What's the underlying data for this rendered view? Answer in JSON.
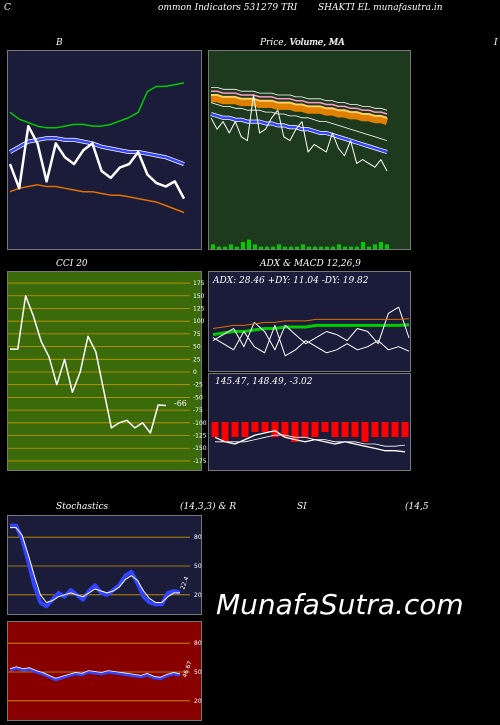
{
  "header": {
    "left_letter": "C",
    "left_title": "ommon  Indicators 531279 TRI",
    "right_title": "SHAKTI EL  munafasutra.in"
  },
  "labels": {
    "b_title": "B",
    "price_title": "Price,  Volume,  MA",
    "price_overlap": "Volume, MA",
    "edge_letter": "I",
    "cci_title": "CCI 20",
    "adx_title": "ADX  & MACD 12,26,9",
    "adx_values": "ADX: 28.46  +DY: 11.04  -DY: 19.82",
    "macd_values": "145.47,  148.49,  -3.02",
    "cci_value": "-66",
    "stoch_title": "Stochastics",
    "stoch_params": "(14,3,3) & R",
    "rsi_title": "SI",
    "rsi_params": "(14,5",
    "stoch_value": "22.4",
    "rsi_value": "46.67",
    "watermark": "MunafaSutra.com"
  },
  "colors": {
    "navy_panel": "#1b1b3a",
    "green_panel": "#1e3a1e",
    "olive_panel": "#3a6a0a",
    "red_panel": "#880000",
    "green_line": "#00cc00",
    "blue_line": "#3344ff",
    "orange_line": "#e07000",
    "gold_grid": "#cc9900",
    "macd_red": "#ff0000"
  },
  "chart_data": [
    {
      "type": "line",
      "panel": "B",
      "series": [
        {
          "role": "upper band",
          "values": [
            78,
            74,
            72,
            70,
            69,
            69,
            70,
            71,
            71,
            70,
            70,
            71,
            73,
            75,
            78,
            90,
            93,
            93,
            94,
            95
          ]
        },
        {
          "role": "middle band",
          "values": [
            55,
            58,
            61,
            62,
            63,
            63,
            62,
            62,
            61,
            60,
            58,
            57,
            56,
            55,
            55,
            54,
            53,
            52,
            50,
            48
          ]
        },
        {
          "role": "lower band",
          "values": [
            32,
            34,
            35,
            36,
            35,
            35,
            34,
            33,
            32,
            32,
            31,
            30,
            30,
            29,
            28,
            27,
            26,
            24,
            22,
            20
          ]
        },
        {
          "role": "price",
          "values": [
            48,
            34,
            70,
            60,
            38,
            60,
            52,
            48,
            56,
            60,
            44,
            40,
            46,
            48,
            55,
            42,
            37,
            35,
            38,
            28
          ]
        }
      ],
      "ylim": [
        0,
        110
      ]
    },
    {
      "type": "line",
      "panel": "Price, Volume, MA",
      "price": [
        68,
        62,
        66,
        60,
        66,
        58,
        56,
        80,
        60,
        62,
        68,
        72,
        58,
        56,
        62,
        66,
        50,
        54,
        52,
        50,
        60,
        52,
        48,
        56,
        44,
        46,
        44,
        42,
        46,
        40
      ],
      "ma_short": [
        70,
        69,
        68,
        68,
        67,
        67,
        66,
        66,
        66,
        65,
        65,
        64,
        64,
        63,
        63,
        62,
        62,
        61,
        60,
        60,
        59,
        58,
        57,
        56,
        55,
        54,
        53,
        52,
        51,
        50
      ],
      "ma_long": [
        78,
        78,
        77,
        77,
        77,
        76,
        76,
        76,
        75,
        75,
        75,
        74,
        74,
        74,
        73,
        73,
        72,
        72,
        72,
        71,
        71,
        70,
        70,
        69,
        69,
        68,
        68,
        67,
        67,
        66
      ],
      "volume": [
        2,
        1,
        1,
        2,
        1,
        3,
        4,
        2,
        1,
        1,
        1,
        2,
        1,
        1,
        1,
        2,
        1,
        1,
        1,
        1,
        1,
        2,
        1,
        1,
        1,
        3,
        1,
        2,
        3,
        2
      ],
      "ylim": [
        0,
        100
      ]
    },
    {
      "type": "line",
      "panel": "CCI 20",
      "yticks": [
        175,
        150,
        125,
        100,
        75,
        50,
        25,
        0,
        -25,
        -50,
        -75,
        -100,
        -125,
        -150,
        -175
      ],
      "values": [
        45,
        45,
        150,
        110,
        60,
        30,
        -25,
        25,
        -40,
        0,
        70,
        40,
        -35,
        -110,
        -100,
        -95,
        -110,
        -100,
        -120,
        -65,
        -66
      ],
      "ylim": [
        -185,
        185
      ]
    },
    {
      "type": "line",
      "panel": "ADX",
      "series": [
        {
          "role": "ADX",
          "values": [
            22,
            23,
            24,
            24,
            25,
            26,
            26,
            27,
            27,
            27,
            28,
            28,
            28,
            28,
            28,
            28,
            28,
            28,
            28,
            28.46
          ]
        },
        {
          "role": "+DY",
          "values": [
            20,
            16,
            12,
            24,
            14,
            10,
            28,
            8,
            12,
            18,
            14,
            10,
            12,
            16,
            12,
            14,
            18,
            12,
            14,
            11.04
          ]
        },
        {
          "role": "-DY",
          "values": [
            18,
            22,
            26,
            14,
            30,
            24,
            12,
            28,
            22,
            16,
            20,
            24,
            22,
            18,
            26,
            24,
            16,
            36,
            40,
            19.82
          ]
        }
      ]
    },
    {
      "type": "bar",
      "panel": "MACD",
      "macd": [
        152,
        150,
        149,
        151,
        153,
        154,
        155,
        152,
        151,
        150,
        151,
        150,
        149,
        150,
        149,
        148,
        147,
        146,
        146,
        145.47
      ],
      "signal": [
        150,
        150,
        150,
        150,
        151,
        152,
        153,
        153,
        152,
        152,
        151,
        151,
        150,
        150,
        150,
        149,
        149,
        148,
        148,
        148.49
      ],
      "histogram": [
        -3,
        -4,
        -3,
        -3,
        -2,
        -2,
        -3,
        -3,
        -4,
        -3,
        -3,
        -2,
        -3,
        -3,
        -3,
        -4,
        -3,
        -3,
        -3,
        -3.02
      ]
    },
    {
      "type": "line",
      "panel": "Stochastics",
      "yticks": [
        80,
        50,
        20
      ],
      "k": [
        92,
        92,
        78,
        55,
        30,
        12,
        8,
        15,
        22,
        18,
        25,
        20,
        15,
        24,
        30,
        22,
        20,
        25,
        30,
        40,
        44,
        32,
        18,
        12,
        10,
        10,
        22,
        24,
        22.4
      ],
      "d": [
        90,
        90,
        82,
        62,
        40,
        20,
        12,
        14,
        18,
        20,
        22,
        20,
        18,
        22,
        26,
        24,
        22,
        24,
        28,
        36,
        40,
        35,
        24,
        16,
        12,
        12,
        18,
        22,
        22
      ],
      "ylim": [
        0,
        100
      ]
    },
    {
      "type": "line",
      "panel": "RSI",
      "yticks": [
        80,
        50,
        20
      ],
      "values": [
        52,
        54,
        52,
        53,
        50,
        48,
        45,
        42,
        44,
        46,
        48,
        47,
        50,
        49,
        48,
        50,
        49,
        48,
        47,
        46,
        45,
        47,
        44,
        43,
        46,
        48,
        46.67
      ],
      "ylim": [
        0,
        100
      ]
    }
  ]
}
